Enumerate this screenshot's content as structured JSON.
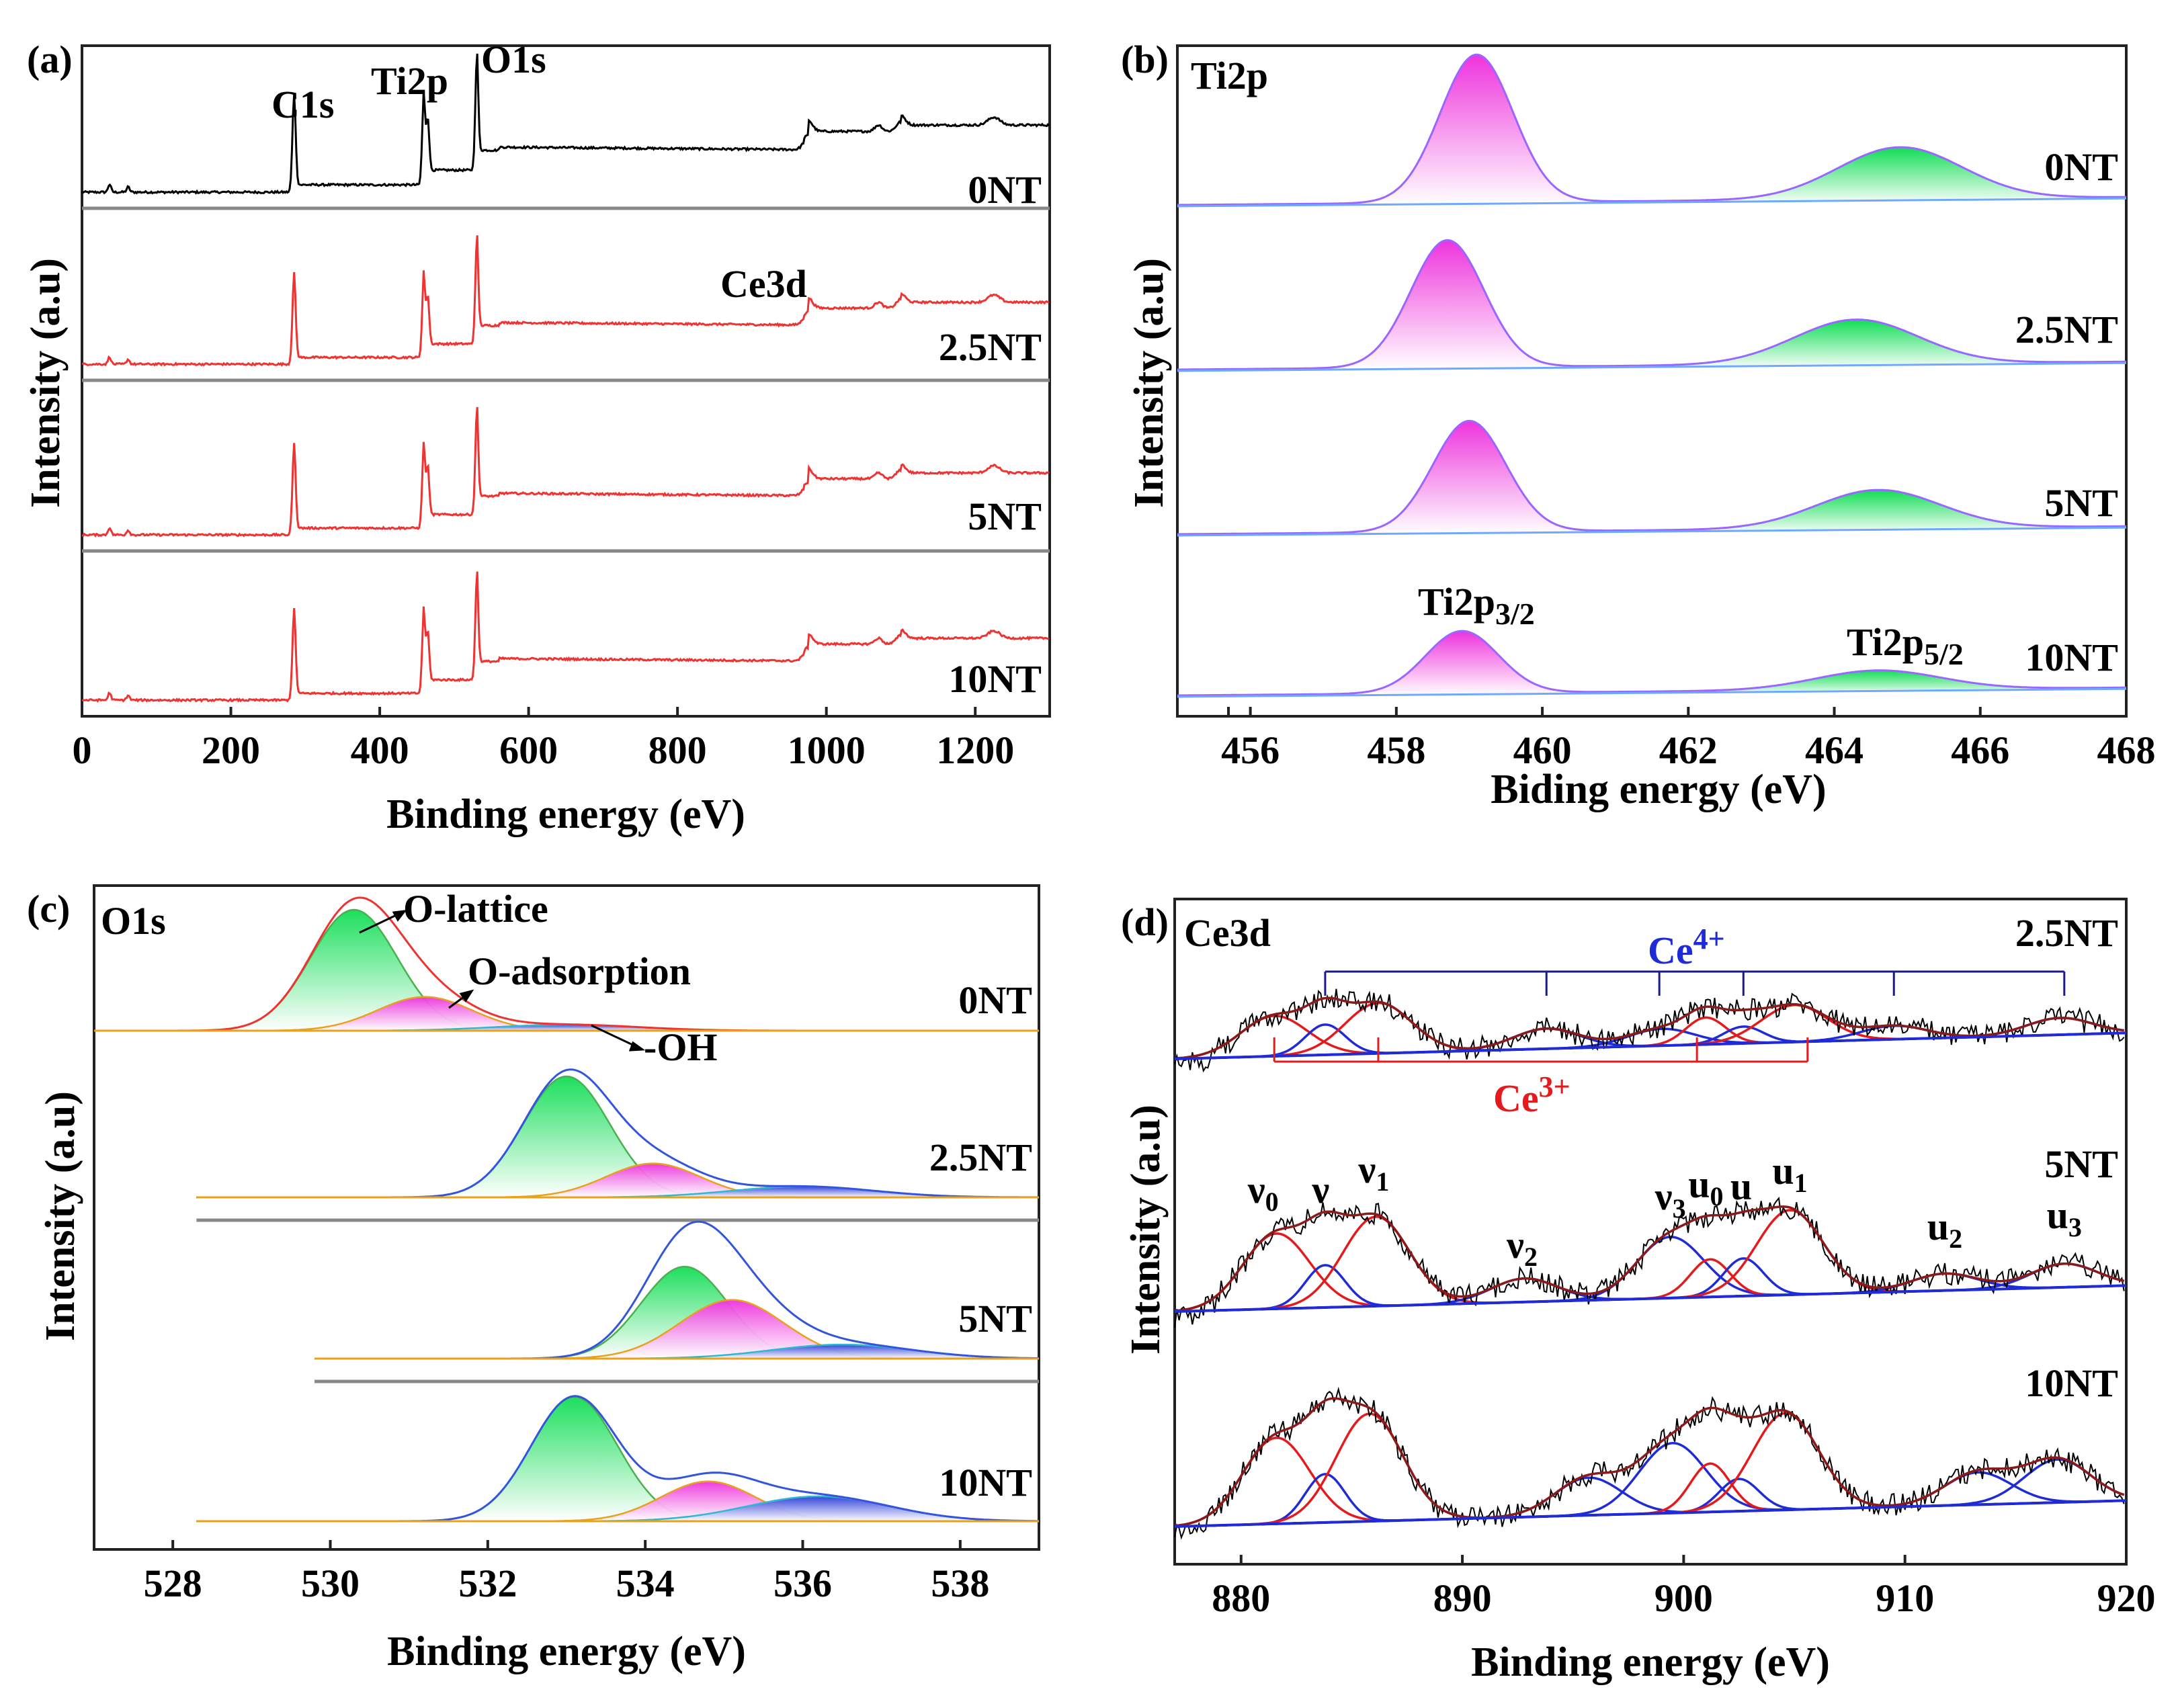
{
  "chart_data": [
    {
      "panel": "(a)",
      "type": "line",
      "title": "",
      "xlabel": "Binding energy (eV)",
      "ylabel": "Intensity (a.u)",
      "xlim": [
        0,
        1300
      ],
      "xticks": [
        "0",
        "200",
        "400",
        "600",
        "800",
        "1000",
        "1200"
      ],
      "series": [
        {
          "name": "0NT",
          "color": "#000000"
        },
        {
          "name": "2.5NT",
          "color": "#ee3333"
        },
        {
          "name": "5NT",
          "color": "#ee3333"
        },
        {
          "name": "10NT",
          "color": "#ee3333"
        }
      ],
      "peaks": [
        {
          "label": "C1s",
          "x": 284.8
        },
        {
          "label": "Ti2p",
          "x": 458.8
        },
        {
          "label": "O1s",
          "x": 530.2
        },
        {
          "label": "Ce3d",
          "x": 882
        }
      ]
    },
    {
      "panel": "(b)",
      "type": "area",
      "title": "Ti2p",
      "xlabel": "Biding energy (eV)",
      "ylabel": "Intensity (a.u)",
      "xlim": [
        455,
        468
      ],
      "xticks": [
        "456",
        "458",
        "460",
        "462",
        "464",
        "466",
        "468"
      ],
      "series": [
        {
          "name": "0NT",
          "peaks": [
            {
              "center": 459.1,
              "height": 1.0
            },
            {
              "center": 464.9,
              "height": 0.35
            }
          ]
        },
        {
          "name": "2.5NT",
          "peaks": [
            {
              "center": 458.7,
              "height": 0.86
            },
            {
              "center": 464.3,
              "height": 0.3
            }
          ]
        },
        {
          "name": "5NT",
          "peaks": [
            {
              "center": 459.0,
              "height": 0.75
            },
            {
              "center": 464.6,
              "height": 0.26
            }
          ]
        },
        {
          "name": "10NT",
          "peaks": [
            {
              "center": 458.9,
              "height": 0.42
            },
            {
              "center": 464.6,
              "height": 0.13
            }
          ]
        }
      ],
      "peak_labels": [
        {
          "label": "Ti2p",
          "sub": "3/2",
          "x": 458.9
        },
        {
          "label": "Ti2p",
          "sub": "5/2",
          "x": 464.6
        }
      ]
    },
    {
      "panel": "(c)",
      "type": "area",
      "title": "O1s",
      "xlabel": "Binding energy (eV)",
      "ylabel": "Intensity (a.u)",
      "xlim": [
        527,
        539
      ],
      "xticks": [
        "528",
        "530",
        "532",
        "534",
        "536",
        "538"
      ],
      "series": [
        {
          "name": "0NT",
          "components": [
            {
              "name": "O-lattice",
              "center": 530.3,
              "height": 1.0
            },
            {
              "name": "O-adsorption",
              "center": 531.2,
              "height": 0.28
            },
            {
              "name": "-OH",
              "center": 533.0,
              "height": 0.05
            }
          ]
        },
        {
          "name": "2.5NT",
          "components": [
            {
              "name": "O-lattice",
              "center": 533.0,
              "height": 1.0
            },
            {
              "name": "O-adsorption",
              "center": 534.1,
              "height": 0.28
            },
            {
              "name": "-OH",
              "center": 536.0,
              "height": 0.09
            }
          ]
        },
        {
          "name": "5NT",
          "components": [
            {
              "name": "O-lattice",
              "center": 534.5,
              "height": 0.72
            },
            {
              "name": "O-adsorption",
              "center": 535.1,
              "height": 0.46
            },
            {
              "name": "-OH",
              "center": 536.5,
              "height": 0.11
            }
          ]
        },
        {
          "name": "10NT",
          "components": [
            {
              "name": "O-lattice",
              "center": 533.1,
              "height": 1.0
            },
            {
              "name": "O-adsorption",
              "center": 534.8,
              "height": 0.32
            },
            {
              "name": "-OH",
              "center": 536.2,
              "height": 0.2
            }
          ]
        }
      ]
    },
    {
      "panel": "(d)",
      "type": "line",
      "title": "Ce3d",
      "xlabel": "Binding energy (eV)",
      "ylabel": "Intensity (a.u)",
      "xlim": [
        877,
        920
      ],
      "xticks": [
        "880",
        "890",
        "900",
        "910",
        "920"
      ],
      "series": [
        {
          "name": "2.5NT",
          "components": [
            {
              "name": "v0",
              "center": 881.5,
              "height": 0.6,
              "state": "Ce3+"
            },
            {
              "name": "v",
              "center": 883.8,
              "height": 0.45,
              "state": "Ce4+"
            },
            {
              "name": "v1",
              "center": 886.2,
              "height": 0.75,
              "state": "Ce3+"
            },
            {
              "name": "v2",
              "center": 893.8,
              "height": 0.3,
              "state": "Ce4+"
            },
            {
              "name": "v3",
              "center": 899.0,
              "height": 0.25,
              "state": "Ce4+"
            },
            {
              "name": "u0",
              "center": 901.0,
              "height": 0.4,
              "state": "Ce3+"
            },
            {
              "name": "u",
              "center": 902.7,
              "height": 0.25,
              "state": "Ce4+"
            },
            {
              "name": "u1",
              "center": 905.0,
              "height": 0.55,
              "state": "Ce3+"
            },
            {
              "name": "u2",
              "center": 909.5,
              "height": 0.2,
              "state": "Ce4+"
            },
            {
              "name": "u3",
              "center": 917.0,
              "height": 0.25,
              "state": "Ce4+"
            }
          ]
        },
        {
          "name": "5NT",
          "components": [
            {
              "name": "v0",
              "center": 881.6,
              "height": 0.8,
              "state": "Ce3+"
            },
            {
              "name": "v",
              "center": 883.8,
              "height": 0.45,
              "state": "Ce4+"
            },
            {
              "name": "v1",
              "center": 886.1,
              "height": 0.95,
              "state": "Ce3+"
            },
            {
              "name": "v2",
              "center": 892.8,
              "height": 0.25,
              "state": "Ce4+"
            },
            {
              "name": "v3",
              "center": 899.4,
              "height": 0.65,
              "state": "Ce4+"
            },
            {
              "name": "u0",
              "center": 901.2,
              "height": 0.4,
              "state": "Ce3+"
            },
            {
              "name": "u",
              "center": 902.7,
              "height": 0.4,
              "state": "Ce4+"
            },
            {
              "name": "u1",
              "center": 904.8,
              "height": 0.9,
              "state": "Ce3+"
            },
            {
              "name": "u2",
              "center": 911.8,
              "height": 0.18,
              "state": "Ce4+"
            },
            {
              "name": "u3",
              "center": 917.2,
              "height": 0.25,
              "state": "Ce4+"
            }
          ]
        },
        {
          "name": "10NT",
          "components": [
            {
              "name": "v0",
              "center": 881.6,
              "height": 0.8,
              "state": "Ce3+"
            },
            {
              "name": "v",
              "center": 883.8,
              "height": 0.45,
              "state": "Ce4+"
            },
            {
              "name": "v1",
              "center": 885.8,
              "height": 1.0,
              "state": "Ce3+"
            },
            {
              "name": "v2",
              "center": 895.7,
              "height": 0.35,
              "state": "Ce4+"
            },
            {
              "name": "v3",
              "center": 899.5,
              "height": 0.65,
              "state": "Ce4+"
            },
            {
              "name": "u0",
              "center": 901.2,
              "height": 0.45,
              "state": "Ce3+"
            },
            {
              "name": "u",
              "center": 902.5,
              "height": 0.3,
              "state": "Ce4+"
            },
            {
              "name": "u1",
              "center": 904.6,
              "height": 0.9,
              "state": "Ce3+"
            },
            {
              "name": "u2",
              "center": 913.3,
              "height": 0.3,
              "state": "Ce4+"
            },
            {
              "name": "u3",
              "center": 916.9,
              "height": 0.4,
              "state": "Ce4+"
            }
          ]
        }
      ],
      "ce4_label": {
        "base": "Ce",
        "sup": "4+"
      },
      "ce3_label": {
        "base": "Ce",
        "sup": "3+"
      },
      "ce4_markers": [
        883.8,
        893.8,
        898.9,
        902.7,
        909.5,
        917.2
      ],
      "ce3_markers": [
        881.5,
        886.2,
        900.6,
        905.6
      ]
    }
  ],
  "colors": {
    "black": "#000000",
    "red": "#ee3333",
    "fit_red": "#e41a1c",
    "fit_blue": "#1f2bd6",
    "navy": "#1a1a8a",
    "darkred": "#8b1a1a",
    "magenta": "#ee44dd",
    "green": "#22dd66",
    "purple": "#9966ff",
    "orange": "#e8a21c",
    "teal": "#30b8d0"
  }
}
